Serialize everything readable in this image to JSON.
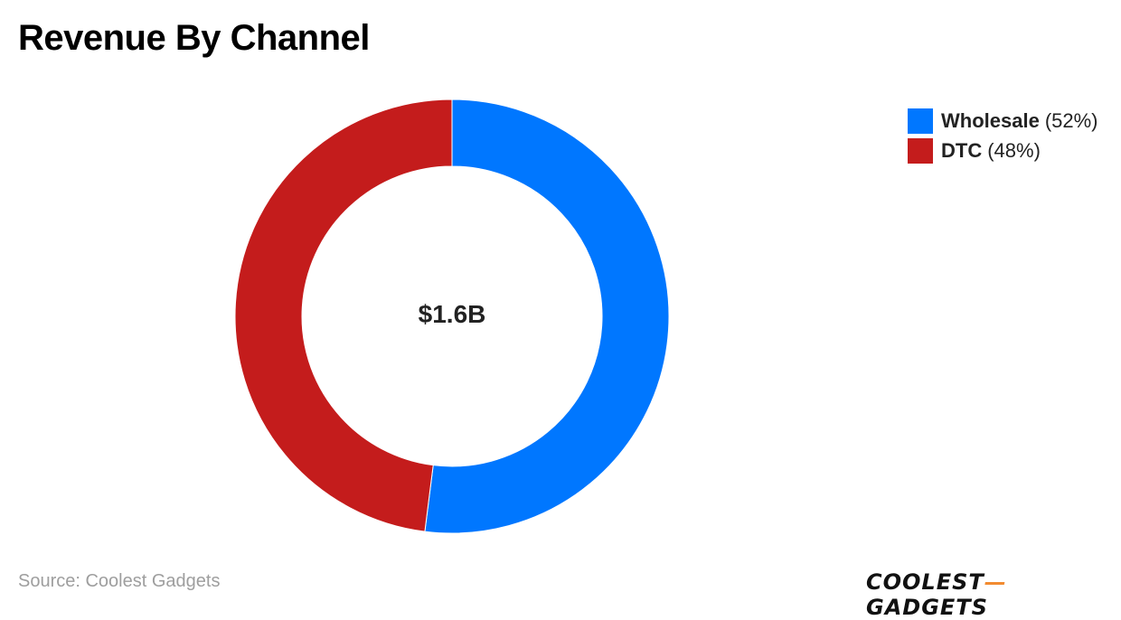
{
  "title": "Revenue By Channel",
  "center_label": "$1.6B",
  "source": "Source: Coolest Gadgets",
  "brand": {
    "left": "COOLEST",
    "dash": "—",
    "right": "GADGETS",
    "dash_color": "#f28b30"
  },
  "chart_data": {
    "type": "pie",
    "variant": "donut",
    "center_text": "$1.6B",
    "legend_position": "top-right",
    "slices": [
      {
        "name": "Wholesale",
        "value": 52,
        "label": "(52%)",
        "color": "#0077ff"
      },
      {
        "name": "DTC",
        "value": 48,
        "label": "(48%)",
        "color": "#c41c1c"
      }
    ]
  }
}
